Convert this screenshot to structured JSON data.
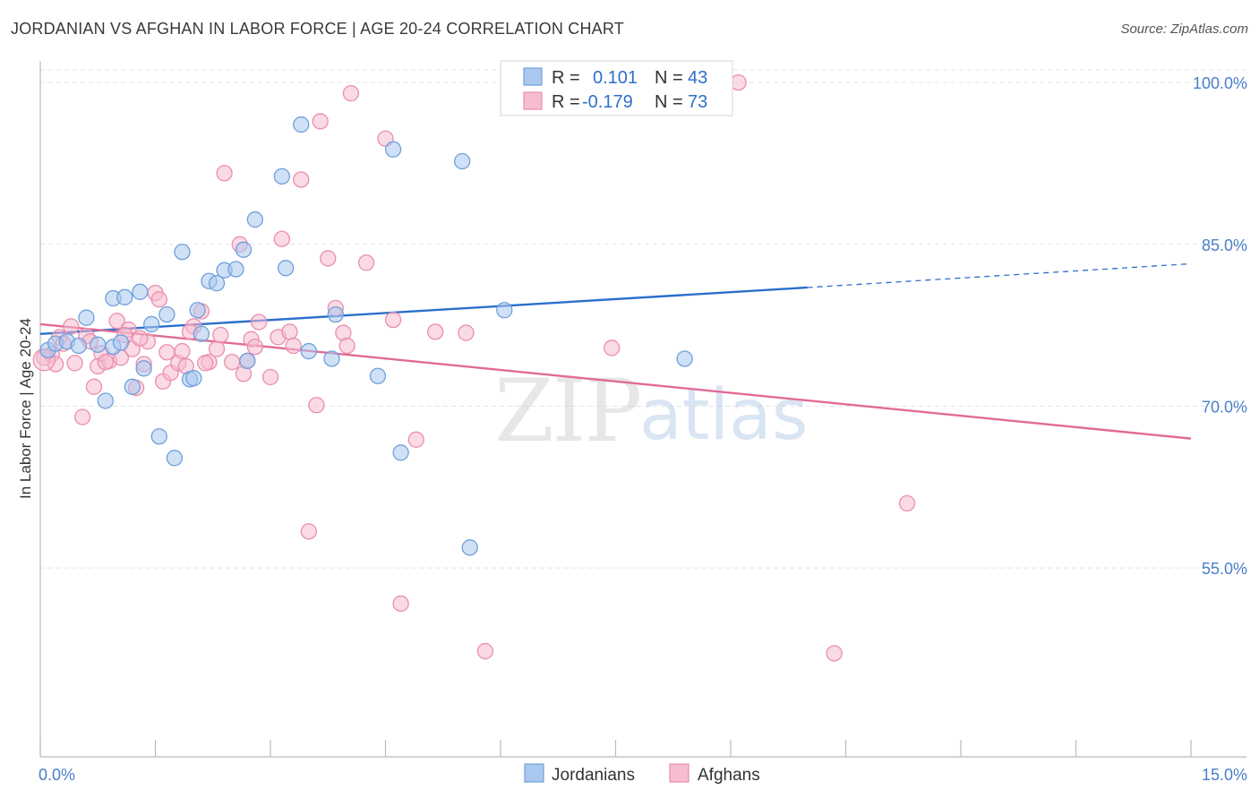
{
  "title": "JORDANIAN VS AFGHAN IN LABOR FORCE | AGE 20-24 CORRELATION CHART",
  "source": "Source: ZipAtlas.com",
  "watermark": {
    "zip": "ZIP",
    "atlas": "atlas"
  },
  "legend": {
    "r_label": "R =",
    "n_label": "N =",
    "jordanians": {
      "r": "0.101",
      "n": "43"
    },
    "afghans": {
      "r": "-0.179",
      "n": "73"
    }
  },
  "colors": {
    "blue_fill": "#aac8ee",
    "blue_stroke": "#6f9fdc",
    "blue_line": "#2a6fcc",
    "pink_fill": "#f6bcd0",
    "pink_stroke": "#ea8eae",
    "pink_line": "#e26a96"
  },
  "chart_data": {
    "type": "scatter",
    "title": "JORDANIAN VS AFGHAN IN LABOR FORCE | AGE 20-24 CORRELATION CHART",
    "xlabel": "",
    "ylabel": "In Labor Force | Age 20-24",
    "xlim": [
      0.0,
      15.0
    ],
    "ylim": [
      37.5,
      102.0
    ],
    "x_tick_labels": {
      "left": "0.0%",
      "right": "15.0%"
    },
    "y_ticks": [
      {
        "value": 100.0,
        "label": "100.0%"
      },
      {
        "value": 85.0,
        "label": "85.0%"
      },
      {
        "value": 70.0,
        "label": "70.0%"
      },
      {
        "value": 55.0,
        "label": "55.0%"
      }
    ],
    "series": [
      {
        "name": "Jordanians",
        "trend": {
          "x0": 0.0,
          "y0": 76.7,
          "x1": 10.0,
          "y1": 81.0,
          "x_dash_end": 15.0,
          "y_dash_end": 83.2
        },
        "points": [
          [
            0.1,
            75.2
          ],
          [
            0.2,
            75.8
          ],
          [
            0.35,
            76.0
          ],
          [
            0.5,
            75.6
          ],
          [
            0.6,
            78.2
          ],
          [
            0.75,
            75.7
          ],
          [
            0.85,
            70.5
          ],
          [
            0.95,
            80.0
          ],
          [
            1.1,
            80.1
          ],
          [
            1.2,
            71.8
          ],
          [
            1.3,
            80.6
          ],
          [
            1.35,
            73.5
          ],
          [
            1.45,
            77.6
          ],
          [
            1.55,
            67.2
          ],
          [
            1.65,
            78.5
          ],
          [
            1.75,
            65.2
          ],
          [
            1.85,
            84.3
          ],
          [
            1.95,
            72.5
          ],
          [
            2.05,
            78.9
          ],
          [
            2.1,
            76.7
          ],
          [
            2.2,
            81.6
          ],
          [
            2.3,
            81.4
          ],
          [
            2.4,
            82.6
          ],
          [
            2.55,
            82.7
          ],
          [
            2.65,
            84.5
          ],
          [
            2.7,
            74.2
          ],
          [
            2.8,
            87.3
          ],
          [
            3.15,
            91.3
          ],
          [
            3.2,
            82.8
          ],
          [
            3.4,
            96.1
          ],
          [
            3.5,
            75.1
          ],
          [
            3.8,
            74.4
          ],
          [
            3.85,
            78.5
          ],
          [
            4.4,
            72.8
          ],
          [
            4.6,
            93.8
          ],
          [
            4.7,
            65.7
          ],
          [
            5.5,
            92.7
          ],
          [
            5.6,
            56.9
          ],
          [
            6.05,
            78.9
          ],
          [
            8.4,
            74.4
          ],
          [
            0.95,
            75.5
          ],
          [
            2.0,
            72.6
          ],
          [
            1.05,
            75.9
          ]
        ]
      },
      {
        "name": "Afghans",
        "trend": {
          "x0": 0.0,
          "y0": 77.6,
          "x1": 15.0,
          "y1": 67.0
        },
        "points": [
          [
            0.05,
            74.5
          ],
          [
            0.15,
            74.8
          ],
          [
            0.25,
            76.4
          ],
          [
            0.3,
            75.8
          ],
          [
            0.4,
            77.4
          ],
          [
            0.45,
            74.0
          ],
          [
            0.55,
            69.0
          ],
          [
            0.6,
            76.5
          ],
          [
            0.7,
            71.8
          ],
          [
            0.75,
            73.7
          ],
          [
            0.8,
            74.9
          ],
          [
            0.9,
            74.2
          ],
          [
            1.0,
            77.9
          ],
          [
            1.05,
            74.5
          ],
          [
            1.15,
            77.1
          ],
          [
            1.2,
            75.3
          ],
          [
            1.25,
            71.7
          ],
          [
            1.35,
            73.9
          ],
          [
            1.4,
            76.0
          ],
          [
            1.5,
            80.5
          ],
          [
            1.55,
            79.9
          ],
          [
            1.6,
            72.3
          ],
          [
            1.65,
            75.0
          ],
          [
            1.7,
            73.1
          ],
          [
            1.8,
            74.0
          ],
          [
            1.85,
            75.1
          ],
          [
            1.9,
            73.7
          ],
          [
            2.0,
            77.4
          ],
          [
            2.1,
            78.8
          ],
          [
            2.2,
            74.1
          ],
          [
            2.3,
            75.3
          ],
          [
            2.35,
            76.6
          ],
          [
            2.4,
            91.6
          ],
          [
            2.5,
            74.1
          ],
          [
            2.6,
            85.0
          ],
          [
            2.65,
            73.0
          ],
          [
            2.7,
            74.2
          ],
          [
            2.75,
            76.2
          ],
          [
            2.8,
            75.5
          ],
          [
            2.85,
            77.8
          ],
          [
            3.0,
            72.7
          ],
          [
            3.1,
            76.4
          ],
          [
            3.15,
            85.5
          ],
          [
            3.25,
            76.9
          ],
          [
            3.3,
            75.6
          ],
          [
            3.4,
            91.0
          ],
          [
            3.5,
            58.4
          ],
          [
            3.6,
            70.1
          ],
          [
            3.65,
            96.4
          ],
          [
            3.75,
            83.7
          ],
          [
            3.85,
            79.1
          ],
          [
            3.95,
            76.8
          ],
          [
            4.0,
            75.6
          ],
          [
            4.05,
            99.0
          ],
          [
            4.25,
            83.3
          ],
          [
            4.5,
            94.8
          ],
          [
            4.6,
            78.0
          ],
          [
            4.7,
            51.7
          ],
          [
            4.9,
            66.9
          ],
          [
            5.15,
            76.9
          ],
          [
            5.55,
            76.8
          ],
          [
            5.8,
            47.3
          ],
          [
            7.45,
            75.4
          ],
          [
            9.1,
            100.0
          ],
          [
            10.35,
            47.1
          ],
          [
            11.3,
            61.0
          ],
          [
            0.2,
            73.9
          ],
          [
            0.65,
            76.0
          ],
          [
            0.85,
            74.1
          ],
          [
            1.3,
            76.3
          ],
          [
            2.15,
            74.0
          ],
          [
            1.95,
            76.9
          ],
          [
            1.1,
            76.6
          ]
        ]
      }
    ],
    "legend": [
      "Jordanians",
      "Afghans"
    ],
    "grid": true
  }
}
